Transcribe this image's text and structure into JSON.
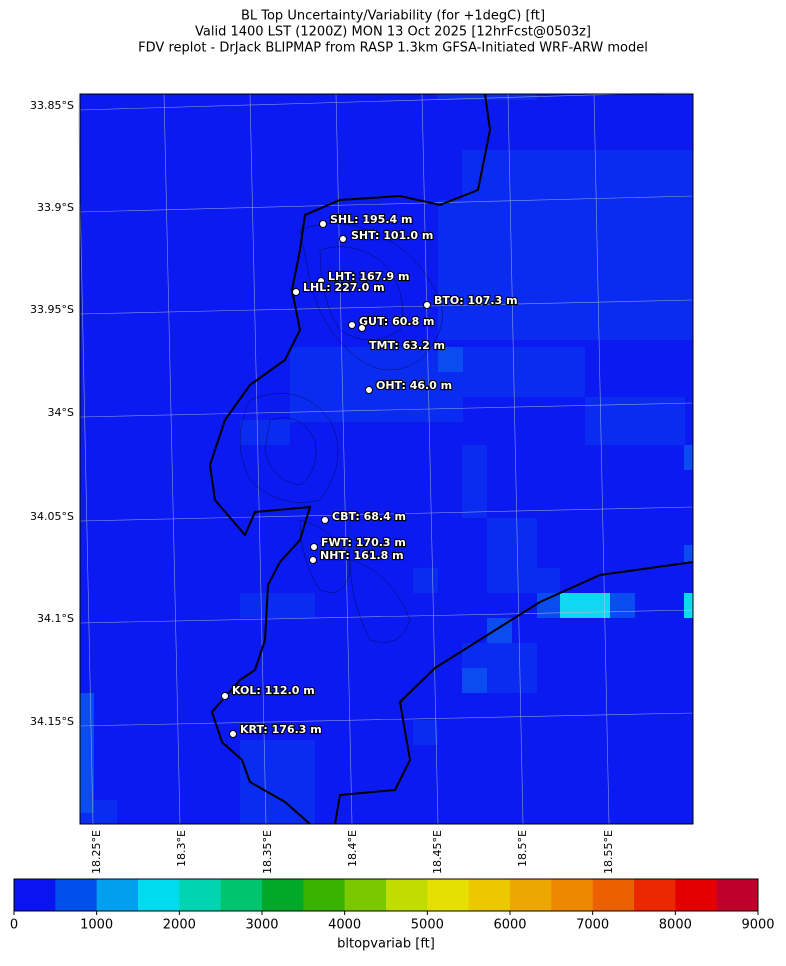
{
  "title": [
    "BL Top Uncertainty/Variability (for +1degC) [ft]",
    "Valid 1400 LST (1200Z) MON 13 Oct 2025 [12hrFcst@0503z]",
    "FDV replot - DrJack BLIPMAP from RASP 1.3km GFSA-Initiated WRF-ARW model"
  ],
  "map": {
    "background": "#0a1af0",
    "lat_labels": [
      "33.85°S",
      "33.9°S",
      "33.95°S",
      "34°S",
      "34.05°S",
      "34.1°S",
      "34.15°S"
    ],
    "lon_labels": [
      "18.25°E",
      "18.3°E",
      "18.35°E",
      "18.4°E",
      "18.45°E",
      "18.5°E",
      "18.55°E"
    ],
    "stations": [
      "SHL: 195.4 m",
      "SHT: 101.0 m",
      "LHT: 167.9 m",
      "LHL: 227.0 m",
      "BTO: 107.3 m",
      "GUT: 60.8 m",
      "TMT: 63.2 m",
      "OHT: 46.0 m",
      "CBT: 68.4 m",
      "FWT: 170.3 m",
      "NHT: 161.8 m",
      "KOL: 112.0 m",
      "KRT: 176.3 m"
    ]
  },
  "colorbar": {
    "label": "bltopvariab [ft]",
    "lim": [
      0,
      9000
    ],
    "ticks": [
      0,
      1000,
      2000,
      3000,
      4000,
      5000,
      6000,
      7000,
      8000,
      9000
    ],
    "colors": [
      "#0a14f0",
      "#0050ee",
      "#00a0ee",
      "#00dcee",
      "#00d4b0",
      "#00c46e",
      "#00aa28",
      "#38b400",
      "#7cc800",
      "#c0dc00",
      "#e6e000",
      "#ecc800",
      "#eca800",
      "#ec8800",
      "#ec6000",
      "#ec2800",
      "#e40000",
      "#c0002a"
    ]
  }
}
